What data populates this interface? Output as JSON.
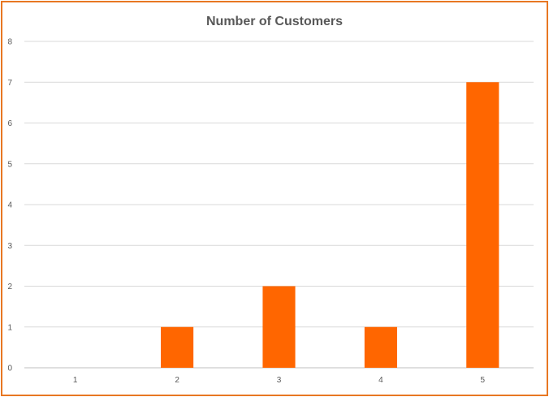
{
  "chart_data": {
    "type": "bar",
    "title": "Number of Customers",
    "categories": [
      "1",
      "2",
      "3",
      "4",
      "5"
    ],
    "values": [
      0,
      1,
      2,
      1,
      7
    ],
    "ylim": [
      0,
      8
    ],
    "yticks": [
      "0",
      "1",
      "2",
      "3",
      "4",
      "5",
      "6",
      "7",
      "8"
    ],
    "grid": true,
    "legend": "none",
    "bar_color": "#ff6600",
    "grid_color": "#d9d9d9",
    "frame_color": "#e87722"
  }
}
